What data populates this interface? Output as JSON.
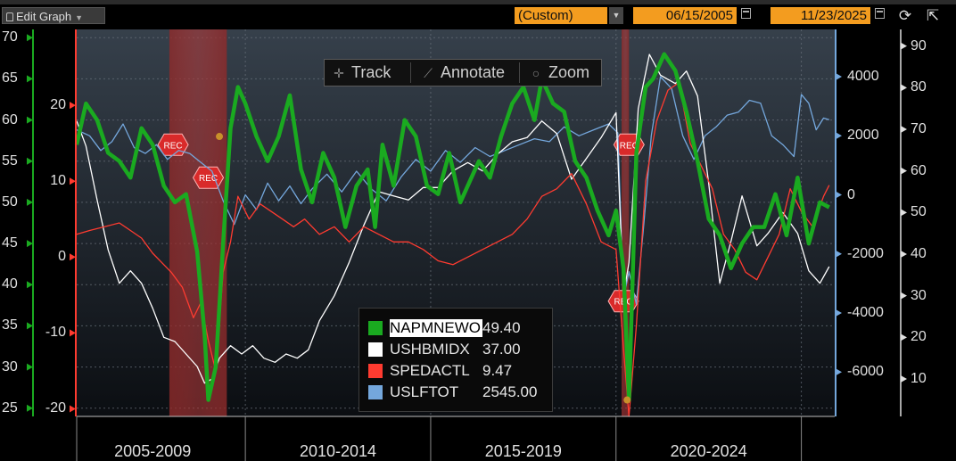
{
  "toolbar": {
    "edit_graph": "Edit Graph",
    "range_label": "(Custom)",
    "start_date": "06/15/2005",
    "end_date": "11/23/2025"
  },
  "chart_tools": {
    "track": "Track",
    "annotate": "Annotate",
    "zoom": "Zoom"
  },
  "legend": [
    {
      "name": "NAPMNEWO",
      "value": "49.40",
      "color": "#1aaa20"
    },
    {
      "name": "USHBMIDX",
      "value": "37.00",
      "color": "#ffffff"
    },
    {
      "name": "SPEDACTL",
      "value": "9.47",
      "color": "#ff3b30"
    },
    {
      "name": "USLFTOT",
      "value": "2545.00",
      "color": "#74a7dc"
    }
  ],
  "recession_label": "REC",
  "chart_data": {
    "type": "line",
    "x_labels": [
      "2005-2009",
      "2010-2014",
      "2015-2019",
      "2020-2024"
    ],
    "x_range": [
      2005.45,
      2025.9
    ],
    "recessions": [
      [
        2007.95,
        2009.5
      ],
      [
        2020.15,
        2020.35
      ]
    ],
    "axes": {
      "napm": {
        "ticks": [
          "70",
          "65",
          "60",
          "55",
          "50",
          "45",
          "40",
          "35",
          "30",
          "25"
        ],
        "range": [
          24,
          71
        ],
        "color": "#1aaa20"
      },
      "spedactl": {
        "ticks": [
          "20",
          "10",
          "0",
          "-10",
          "-20"
        ],
        "range": [
          -21,
          30
        ],
        "color": "#ff3b30"
      },
      "uslftot": {
        "ticks": [
          "4000",
          "2000",
          "0",
          "-2000",
          "-4000",
          "-6000"
        ],
        "range": [
          -7500,
          5600
        ],
        "color": "#74a7dc"
      },
      "ushbmidx": {
        "ticks": [
          "90",
          "80",
          "70",
          "60",
          "50",
          "40",
          "30",
          "20",
          "10"
        ],
        "range": [
          1,
          94
        ],
        "color": "#ffffff"
      }
    },
    "series": [
      {
        "name": "NAPMNEWO",
        "axis": "napm",
        "color": "#1aaa20",
        "width": 4.5,
        "points": [
          [
            2005.45,
            57
          ],
          [
            2005.7,
            62
          ],
          [
            2006.0,
            60
          ],
          [
            2006.3,
            56
          ],
          [
            2006.6,
            55
          ],
          [
            2006.9,
            53
          ],
          [
            2007.2,
            59
          ],
          [
            2007.5,
            57
          ],
          [
            2007.8,
            52
          ],
          [
            2008.1,
            50
          ],
          [
            2008.4,
            51
          ],
          [
            2008.7,
            44
          ],
          [
            2008.9,
            34
          ],
          [
            2009.0,
            26
          ],
          [
            2009.2,
            30
          ],
          [
            2009.4,
            45
          ],
          [
            2009.6,
            59
          ],
          [
            2009.8,
            64
          ],
          [
            2010.0,
            62
          ],
          [
            2010.3,
            58
          ],
          [
            2010.6,
            55
          ],
          [
            2010.9,
            58
          ],
          [
            2011.2,
            63
          ],
          [
            2011.5,
            54
          ],
          [
            2011.8,
            50
          ],
          [
            2012.1,
            56
          ],
          [
            2012.4,
            53
          ],
          [
            2012.7,
            47
          ],
          [
            2013.0,
            52
          ],
          [
            2013.3,
            54
          ],
          [
            2013.5,
            47
          ],
          [
            2013.7,
            57
          ],
          [
            2014.0,
            52
          ],
          [
            2014.3,
            60
          ],
          [
            2014.6,
            58
          ],
          [
            2014.9,
            52
          ],
          [
            2015.2,
            51
          ],
          [
            2015.5,
            56
          ],
          [
            2015.8,
            50
          ],
          [
            2016.0,
            52
          ],
          [
            2016.3,
            55
          ],
          [
            2016.6,
            53
          ],
          [
            2016.9,
            58
          ],
          [
            2017.2,
            62
          ],
          [
            2017.5,
            64
          ],
          [
            2017.8,
            60
          ],
          [
            2018.0,
            65
          ],
          [
            2018.3,
            62
          ],
          [
            2018.6,
            61
          ],
          [
            2018.9,
            55
          ],
          [
            2019.2,
            53
          ],
          [
            2019.5,
            49
          ],
          [
            2019.8,
            46
          ],
          [
            2020.0,
            49
          ],
          [
            2020.2,
            42
          ],
          [
            2020.35,
            26
          ],
          [
            2020.55,
            56
          ],
          [
            2020.8,
            64
          ],
          [
            2021.0,
            65
          ],
          [
            2021.3,
            68
          ],
          [
            2021.6,
            66
          ],
          [
            2021.9,
            61
          ],
          [
            2022.2,
            55
          ],
          [
            2022.5,
            48
          ],
          [
            2022.8,
            46
          ],
          [
            2023.1,
            42
          ],
          [
            2023.4,
            45
          ],
          [
            2023.7,
            47
          ],
          [
            2024.0,
            47
          ],
          [
            2024.3,
            51
          ],
          [
            2024.6,
            46
          ],
          [
            2024.9,
            53
          ],
          [
            2025.2,
            45
          ],
          [
            2025.5,
            50
          ],
          [
            2025.75,
            49.4
          ]
        ]
      },
      {
        "name": "USHBMIDX",
        "axis": "ushbmidx",
        "color": "#ffffff",
        "width": 1.3,
        "points": [
          [
            2005.45,
            72
          ],
          [
            2005.7,
            66
          ],
          [
            2006.0,
            53
          ],
          [
            2006.3,
            41
          ],
          [
            2006.6,
            33
          ],
          [
            2006.9,
            36
          ],
          [
            2007.2,
            33
          ],
          [
            2007.5,
            27
          ],
          [
            2007.8,
            20
          ],
          [
            2008.1,
            19
          ],
          [
            2008.4,
            16
          ],
          [
            2008.7,
            13
          ],
          [
            2008.9,
            9
          ],
          [
            2009.1,
            10
          ],
          [
            2009.3,
            15
          ],
          [
            2009.6,
            18
          ],
          [
            2009.9,
            16
          ],
          [
            2010.2,
            18
          ],
          [
            2010.5,
            15
          ],
          [
            2010.8,
            14
          ],
          [
            2011.1,
            16
          ],
          [
            2011.4,
            15
          ],
          [
            2011.7,
            17
          ],
          [
            2012.0,
            24
          ],
          [
            2012.4,
            30
          ],
          [
            2012.8,
            38
          ],
          [
            2013.2,
            47
          ],
          [
            2013.6,
            55
          ],
          [
            2014.0,
            54
          ],
          [
            2014.4,
            53
          ],
          [
            2014.8,
            56
          ],
          [
            2015.2,
            56
          ],
          [
            2015.6,
            60
          ],
          [
            2016.0,
            62
          ],
          [
            2016.4,
            60
          ],
          [
            2016.8,
            64
          ],
          [
            2017.2,
            67
          ],
          [
            2017.6,
            68
          ],
          [
            2018.0,
            72
          ],
          [
            2018.4,
            69
          ],
          [
            2018.8,
            58
          ],
          [
            2019.2,
            63
          ],
          [
            2019.6,
            68
          ],
          [
            2020.0,
            74
          ],
          [
            2020.2,
            30
          ],
          [
            2020.35,
            38
          ],
          [
            2020.6,
            75
          ],
          [
            2020.9,
            88
          ],
          [
            2021.2,
            83
          ],
          [
            2021.6,
            81
          ],
          [
            2021.9,
            84
          ],
          [
            2022.2,
            78
          ],
          [
            2022.5,
            57
          ],
          [
            2022.8,
            33
          ],
          [
            2023.1,
            43
          ],
          [
            2023.4,
            54
          ],
          [
            2023.8,
            42
          ],
          [
            2024.1,
            45
          ],
          [
            2024.5,
            50
          ],
          [
            2024.9,
            45
          ],
          [
            2025.2,
            36
          ],
          [
            2025.5,
            33
          ],
          [
            2025.75,
            37
          ]
        ]
      },
      {
        "name": "SPEDACTL",
        "axis": "spedactl",
        "color": "#ff3b30",
        "width": 1.3,
        "points": [
          [
            2005.45,
            3
          ],
          [
            2005.8,
            3.5
          ],
          [
            2006.2,
            4
          ],
          [
            2006.6,
            4.5
          ],
          [
            2006.9,
            3.5
          ],
          [
            2007.2,
            2.5
          ],
          [
            2007.5,
            0.5
          ],
          [
            2007.8,
            -1
          ],
          [
            2008.0,
            -2
          ],
          [
            2008.3,
            -4
          ],
          [
            2008.6,
            -8
          ],
          [
            2008.8,
            -6
          ],
          [
            2009.0,
            -11
          ],
          [
            2009.2,
            -15
          ],
          [
            2009.4,
            -2
          ],
          [
            2009.6,
            2
          ],
          [
            2009.8,
            8
          ],
          [
            2010.1,
            5
          ],
          [
            2010.4,
            7
          ],
          [
            2010.7,
            6
          ],
          [
            2011.0,
            5
          ],
          [
            2011.3,
            4
          ],
          [
            2011.6,
            5
          ],
          [
            2012.0,
            3
          ],
          [
            2012.4,
            4
          ],
          [
            2012.8,
            2
          ],
          [
            2013.2,
            4
          ],
          [
            2013.6,
            3
          ],
          [
            2014.0,
            2
          ],
          [
            2014.4,
            2
          ],
          [
            2014.8,
            1
          ],
          [
            2015.2,
            -0.5
          ],
          [
            2015.6,
            -1
          ],
          [
            2016.0,
            0
          ],
          [
            2016.4,
            1
          ],
          [
            2016.8,
            2
          ],
          [
            2017.2,
            3
          ],
          [
            2017.6,
            5
          ],
          [
            2018.0,
            8
          ],
          [
            2018.4,
            9
          ],
          [
            2018.8,
            11
          ],
          [
            2019.2,
            7
          ],
          [
            2019.6,
            2
          ],
          [
            2020.0,
            1
          ],
          [
            2020.2,
            -12
          ],
          [
            2020.35,
            -21
          ],
          [
            2020.55,
            -9
          ],
          [
            2020.8,
            10
          ],
          [
            2021.1,
            18
          ],
          [
            2021.4,
            22
          ],
          [
            2021.7,
            23
          ],
          [
            2022.0,
            15
          ],
          [
            2022.3,
            12
          ],
          [
            2022.6,
            9
          ],
          [
            2022.9,
            3
          ],
          [
            2023.2,
            1
          ],
          [
            2023.5,
            -2
          ],
          [
            2023.8,
            -3
          ],
          [
            2024.1,
            0
          ],
          [
            2024.4,
            3
          ],
          [
            2024.7,
            9
          ],
          [
            2025.0,
            6
          ],
          [
            2025.3,
            4
          ],
          [
            2025.6,
            8
          ],
          [
            2025.75,
            9.47
          ]
        ]
      },
      {
        "name": "USLFTOT",
        "axis": "uslftot",
        "color": "#74a7dc",
        "width": 1.3,
        "points": [
          [
            2005.45,
            2200
          ],
          [
            2005.8,
            2000
          ],
          [
            2006.1,
            1500
          ],
          [
            2006.4,
            1800
          ],
          [
            2006.7,
            2400
          ],
          [
            2007.0,
            1600
          ],
          [
            2007.3,
            1400
          ],
          [
            2007.6,
            1700
          ],
          [
            2007.9,
            1200
          ],
          [
            2008.2,
            1500
          ],
          [
            2008.5,
            1400
          ],
          [
            2008.8,
            1100
          ],
          [
            2009.1,
            800
          ],
          [
            2009.4,
            -200
          ],
          [
            2009.7,
            -1000
          ],
          [
            2010.0,
            0
          ],
          [
            2010.3,
            -500
          ],
          [
            2010.6,
            400
          ],
          [
            2010.9,
            -200
          ],
          [
            2011.2,
            300
          ],
          [
            2011.5,
            -300
          ],
          [
            2011.8,
            200
          ],
          [
            2012.2,
            700
          ],
          [
            2012.6,
            100
          ],
          [
            2013.0,
            800
          ],
          [
            2013.4,
            200
          ],
          [
            2013.8,
            -200
          ],
          [
            2014.2,
            600
          ],
          [
            2014.6,
            1200
          ],
          [
            2015.0,
            800
          ],
          [
            2015.4,
            1500
          ],
          [
            2015.8,
            1100
          ],
          [
            2016.2,
            1600
          ],
          [
            2016.6,
            1300
          ],
          [
            2017.0,
            1500
          ],
          [
            2017.4,
            1700
          ],
          [
            2017.8,
            1900
          ],
          [
            2018.2,
            1800
          ],
          [
            2018.6,
            2300
          ],
          [
            2019.0,
            2000
          ],
          [
            2019.4,
            2200
          ],
          [
            2019.8,
            2400
          ],
          [
            2020.05,
            2100
          ],
          [
            2020.2,
            -3500
          ],
          [
            2020.35,
            -2600
          ],
          [
            2020.55,
            -3700
          ],
          [
            2020.75,
            -1000
          ],
          [
            2020.95,
            2000
          ],
          [
            2021.2,
            4000
          ],
          [
            2021.5,
            3600
          ],
          [
            2021.8,
            2000
          ],
          [
            2022.1,
            1200
          ],
          [
            2022.4,
            2000
          ],
          [
            2022.7,
            2300
          ],
          [
            2023.0,
            2700
          ],
          [
            2023.3,
            2800
          ],
          [
            2023.6,
            3200
          ],
          [
            2023.9,
            3100
          ],
          [
            2024.2,
            2000
          ],
          [
            2024.5,
            1700
          ],
          [
            2024.8,
            1300
          ],
          [
            2025.0,
            3400
          ],
          [
            2025.2,
            3100
          ],
          [
            2025.4,
            2200
          ],
          [
            2025.6,
            2600
          ],
          [
            2025.75,
            2545
          ]
        ]
      }
    ]
  }
}
